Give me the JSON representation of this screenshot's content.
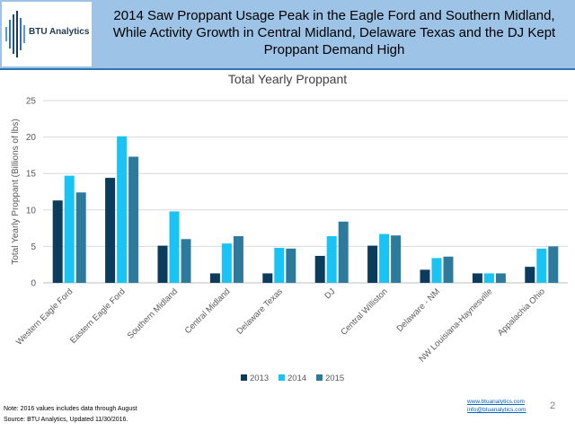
{
  "header": {
    "logo_text": "BTU Analytics",
    "title": "2014 Saw Proppant Usage Peak in the Eagle Ford and Southern Midland, While Activity Growth in Central Midland, Delaware Texas and the DJ Kept Proppant Demand High"
  },
  "chart_data": {
    "type": "bar",
    "title": "Total Yearly Proppant",
    "xlabel": "",
    "ylabel": "Total Yearly Proppant (Billions of lbs)",
    "ylim": [
      0,
      25
    ],
    "yticks": [
      0,
      5,
      10,
      15,
      20,
      25
    ],
    "grid": true,
    "legend_position": "bottom",
    "categories": [
      "Western Eagle Ford",
      "Eastern Eagle Ford",
      "Southern Midland",
      "Central Midland",
      "Delaware Texas",
      "DJ",
      "Central Williston",
      "Delaware - NM",
      "NW Louisiana-Haynesville",
      "Appalachia Ohio"
    ],
    "series": [
      {
        "name": "2013",
        "color": "#0b3c5d",
        "values": [
          11.3,
          14.4,
          5.1,
          1.3,
          1.3,
          3.7,
          5.1,
          1.8,
          1.3,
          2.2
        ]
      },
      {
        "name": "2014",
        "color": "#19c4f5",
        "values": [
          14.7,
          20.1,
          9.8,
          5.4,
          4.8,
          6.4,
          6.7,
          3.4,
          1.3,
          4.7
        ]
      },
      {
        "name": "2015",
        "color": "#2d7a9c",
        "values": [
          12.4,
          17.3,
          6.0,
          6.4,
          4.7,
          8.4,
          6.5,
          3.6,
          1.3,
          5.0
        ]
      }
    ]
  },
  "footer": {
    "note": "Note: 2016 values includes data through August",
    "source": "Source: BTU Analytics, Updated 11/30/2016.",
    "website": "www.btuanalytics.com",
    "email": "info@btuanalytics.com",
    "page_number": "2"
  }
}
